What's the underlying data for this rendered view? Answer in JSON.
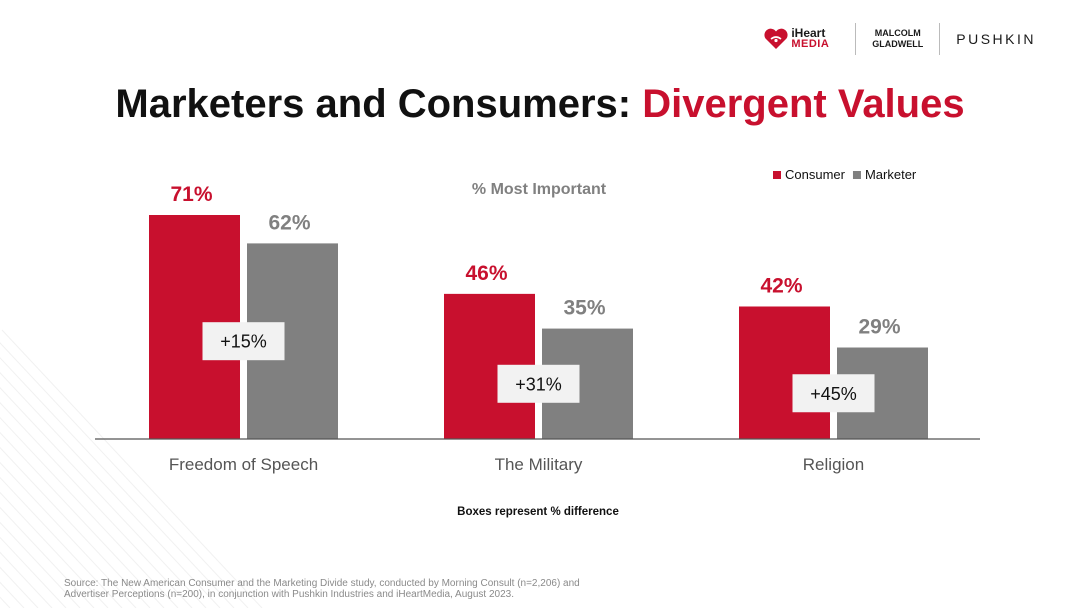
{
  "header": {
    "logos": {
      "iheart_word1": "iHeart",
      "iheart_word2": "MEDIA",
      "malcolm_line1": "MALCOLM",
      "malcolm_line2": "GLADWELL",
      "pushkin": "PUSHKIN"
    },
    "title_part1": "Marketers and Consumers: ",
    "title_part2": "Divergent Values"
  },
  "colors": {
    "consumer": "#c8102e",
    "marketer": "#808080",
    "axis": "#555555",
    "label_gray": "#808080",
    "box_bg": "#f2f2f2"
  },
  "chart_data": {
    "type": "bar",
    "subtitle": "% Most Important",
    "categories": [
      "Freedom of Speech",
      "The Military",
      "Religion"
    ],
    "series": [
      {
        "name": "Consumer",
        "values": [
          71,
          46,
          42
        ],
        "labels": [
          "71%",
          "46%",
          "42%"
        ]
      },
      {
        "name": "Marketer",
        "values": [
          62,
          35,
          29
        ],
        "labels": [
          "62%",
          "35%",
          "29%"
        ]
      }
    ],
    "difference_boxes": [
      "+15%",
      "+31%",
      "+45%"
    ],
    "ylim": [
      0,
      85
    ],
    "legend_position": "top-right",
    "grid": false
  },
  "footnote": "Boxes represent % difference",
  "source_line1": "Source: The New American Consumer and the Marketing Divide study, conducted by Morning Consult (n=2,206) and",
  "source_line2": "Advertiser Perceptions (n=200), in conjunction with Pushkin Industries and iHeartMedia, August 2023."
}
